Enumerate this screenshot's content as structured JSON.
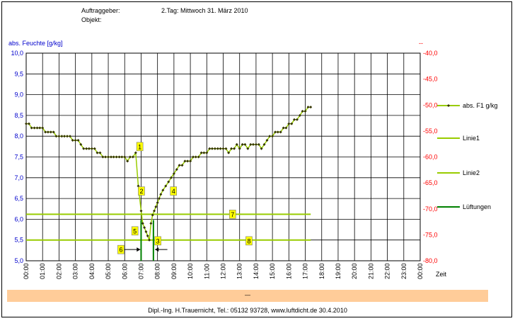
{
  "header": {
    "auftraggeber_label": "Auftraggeber:",
    "objekt_label": "Objekt:",
    "day_title": "2.Tag: Mittwoch 31. März 2010"
  },
  "footer": {
    "band_text": "—",
    "text": "Dipl.-Ing. H.Trauernicht, Tel.: 05132 93728, www.luftdicht.de 30.4.2010"
  },
  "colors": {
    "left_axis": "#0000cc",
    "right_axis": "#ff0000",
    "series_line": "#99cc00",
    "series_marker": "#333300",
    "luftungen": "#008000",
    "label_box": "#ffff00",
    "footer_band": "#ffcc99"
  },
  "chart_data": {
    "type": "line",
    "ylabel_left": "abs. Feuchte [g/kg]",
    "ylabel_right": "--",
    "xlabel": "Zeit",
    "ylim_left": [
      5.0,
      10.0
    ],
    "ylim_right": [
      -80.0,
      -40.0
    ],
    "yticks_left": [
      "10,0",
      "9,5",
      "9,0",
      "8,5",
      "8,0",
      "7,5",
      "7,0",
      "6,5",
      "6,0",
      "5,5",
      "5,0"
    ],
    "yticks_right": [
      "-40,0",
      "-45,0",
      "-50,0",
      "-55,0",
      "-60,0",
      "-65,0",
      "-70,0",
      "-75,0",
      "-80,0"
    ],
    "xticks": [
      "00:00",
      "01:00",
      "02:00",
      "03:00",
      "04:00",
      "05:00",
      "06:00",
      "07:00",
      "08:00",
      "09:00",
      "10:00",
      "11:00",
      "12:00",
      "13:00",
      "14:00",
      "15:00",
      "16:00",
      "17:00",
      "18:00",
      "19:00",
      "20:00",
      "21:00",
      "22:00",
      "23:00",
      "00:00"
    ],
    "grid": true,
    "legend_placement": "right",
    "series": [
      {
        "name": "abs. F1 g/kg",
        "x": [
          0.0,
          0.17,
          0.33,
          0.5,
          0.67,
          0.83,
          1.0,
          1.17,
          1.33,
          1.5,
          1.67,
          1.83,
          2.0,
          2.17,
          2.33,
          2.5,
          2.67,
          2.83,
          3.0,
          3.17,
          3.33,
          3.5,
          3.67,
          3.83,
          4.0,
          4.17,
          4.33,
          4.5,
          4.67,
          4.83,
          5.0,
          5.17,
          5.33,
          5.5,
          5.67,
          5.83,
          6.0,
          6.17,
          6.33,
          6.5,
          6.67,
          6.83,
          7.0,
          7.1,
          7.2,
          7.3,
          7.4,
          7.5,
          7.6,
          7.7,
          7.8,
          7.9,
          8.0,
          8.1,
          8.2,
          8.33,
          8.5,
          8.67,
          8.83,
          9.0,
          9.17,
          9.33,
          9.5,
          9.67,
          9.83,
          10.0,
          10.17,
          10.33,
          10.5,
          10.67,
          10.83,
          11.0,
          11.17,
          11.33,
          11.5,
          11.67,
          11.83,
          12.0,
          12.17,
          12.33,
          12.5,
          12.67,
          12.83,
          13.0,
          13.17,
          13.33,
          13.5,
          13.67,
          13.83,
          14.0,
          14.17,
          14.33,
          14.5,
          14.67,
          14.83,
          15.0,
          15.17,
          15.33,
          15.5,
          15.67,
          15.83,
          16.0,
          16.17,
          16.33,
          16.5,
          16.67,
          16.83,
          17.0,
          17.17,
          17.33
        ],
        "values": [
          8.3,
          8.3,
          8.2,
          8.2,
          8.2,
          8.2,
          8.2,
          8.1,
          8.1,
          8.1,
          8.1,
          8.0,
          8.0,
          8.0,
          8.0,
          8.0,
          8.0,
          7.9,
          7.9,
          7.9,
          7.8,
          7.7,
          7.7,
          7.7,
          7.7,
          7.7,
          7.6,
          7.6,
          7.5,
          7.5,
          7.5,
          7.5,
          7.5,
          7.5,
          7.5,
          7.5,
          7.5,
          7.4,
          7.5,
          7.5,
          7.6,
          6.8,
          6.2,
          5.9,
          5.8,
          5.7,
          5.6,
          5.5,
          5.9,
          6.1,
          6.2,
          6.3,
          6.4,
          6.5,
          6.6,
          6.7,
          6.8,
          6.9,
          7.0,
          7.1,
          7.2,
          7.3,
          7.3,
          7.4,
          7.4,
          7.4,
          7.5,
          7.5,
          7.5,
          7.6,
          7.6,
          7.6,
          7.7,
          7.7,
          7.7,
          7.7,
          7.7,
          7.7,
          7.7,
          7.6,
          7.7,
          7.7,
          7.8,
          7.7,
          7.8,
          7.8,
          7.7,
          7.8,
          7.8,
          7.8,
          7.8,
          7.7,
          7.8,
          7.9,
          8.0,
          8.0,
          8.1,
          8.1,
          8.1,
          8.2,
          8.2,
          8.3,
          8.3,
          8.4,
          8.4,
          8.5,
          8.6,
          8.6,
          8.7,
          8.7
        ]
      },
      {
        "name": "Linie1",
        "x": [
          0.0,
          17.33
        ],
        "values": [
          6.12,
          6.12
        ]
      },
      {
        "name": "Linie2",
        "x": [
          0.0,
          17.33
        ],
        "values": [
          5.5,
          5.5
        ]
      },
      {
        "name": "Lüftungen",
        "x_times": [
          7.0,
          7.75
        ],
        "from": 5.0,
        "to": 5.98
      }
    ],
    "annotations": [
      {
        "label": "1",
        "x": 6.9,
        "y": 7.75
      },
      {
        "label": "2",
        "x": 7.0,
        "y": 6.68
      },
      {
        "label": "3",
        "x": 8.0,
        "y": 5.48
      },
      {
        "label": "4",
        "x": 8.95,
        "y": 6.68
      },
      {
        "label": "5",
        "x": 6.6,
        "y": 5.72
      },
      {
        "label": "6",
        "x": 5.75,
        "y": 5.27
      },
      {
        "label": "7",
        "x": 12.55,
        "y": 6.12
      },
      {
        "label": "8",
        "x": 13.55,
        "y": 5.48
      }
    ],
    "arrows": [
      {
        "from_x": 5.95,
        "to_x": 6.95,
        "y": 5.27
      },
      {
        "from_x": 8.6,
        "to_x": 7.85,
        "y": 5.27
      }
    ]
  }
}
